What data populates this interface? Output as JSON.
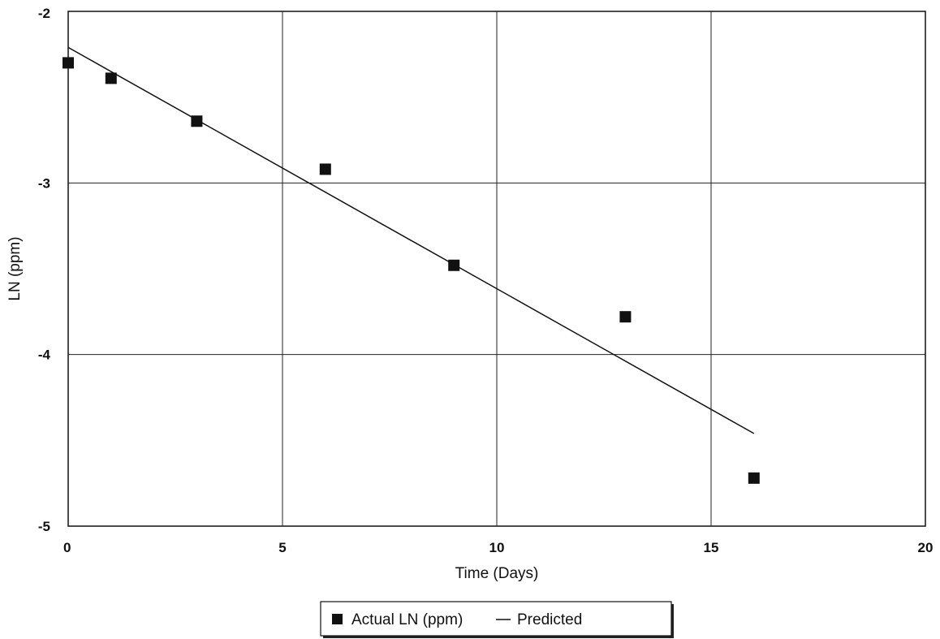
{
  "chart_data": {
    "type": "scatter",
    "title": "",
    "xlabel": "Time (Days)",
    "ylabel": "LN (ppm)",
    "xlim": [
      0,
      20
    ],
    "ylim": [
      -5,
      -2
    ],
    "xticks": [
      0,
      5,
      10,
      15,
      20
    ],
    "yticks": [
      -2,
      -3,
      -4,
      -5
    ],
    "xtick_labels": [
      "0",
      "5",
      "10",
      "15",
      "20"
    ],
    "ytick_labels": [
      "-2",
      "-3",
      "-4",
      "-5"
    ],
    "grid": true,
    "legend_position": "bottom-center",
    "series": [
      {
        "name": "Actual LN (ppm)",
        "kind": "scatter",
        "marker": "square",
        "color": "#111111",
        "x": [
          0,
          1,
          3,
          6,
          9,
          13,
          16
        ],
        "y": [
          -2.3,
          -2.39,
          -2.64,
          -2.92,
          -3.48,
          -3.78,
          -4.72
        ]
      },
      {
        "name": "Predicted",
        "kind": "line",
        "color": "#111111",
        "x": [
          0,
          16
        ],
        "y": [
          -2.21,
          -4.46
        ]
      }
    ]
  }
}
